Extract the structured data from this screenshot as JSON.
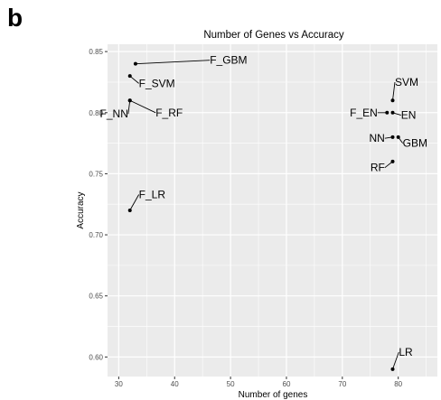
{
  "panel_label": "b",
  "chart_data": {
    "type": "scatter",
    "title": "Number of Genes vs Accuracy",
    "xlabel": "Number of genes",
    "ylabel": "Accuracy",
    "xlim": [
      28,
      87
    ],
    "ylim": [
      0.584,
      0.856
    ],
    "xticks": [
      30,
      40,
      50,
      60,
      70,
      80
    ],
    "yticks": [
      0.6,
      0.65,
      0.7,
      0.75,
      0.8,
      0.85
    ],
    "ytick_labels": [
      "0.60",
      "0.65",
      "0.70",
      "0.75",
      "0.80",
      "0.85"
    ],
    "grid": true,
    "background": "#ebebeb",
    "point_color": "#000000",
    "points": [
      {
        "label": "F_GBM",
        "x": 33,
        "y": 0.84,
        "lx": 46.3,
        "ly": 0.84,
        "anchor": "start"
      },
      {
        "label": "F_SVM",
        "x": 32,
        "y": 0.83,
        "lx": 33.6,
        "ly": 0.821,
        "anchor": "start"
      },
      {
        "label": "F_NN",
        "x": 32,
        "y": 0.81,
        "lx": 31.7,
        "ly": 0.796,
        "anchor": "end"
      },
      {
        "label": "F_RF",
        "x": 32,
        "y": 0.81,
        "lx": 36.6,
        "ly": 0.797,
        "anchor": "start"
      },
      {
        "label": "F_LR",
        "x": 32,
        "y": 0.72,
        "lx": 33.6,
        "ly": 0.73,
        "anchor": "start"
      },
      {
        "label": "SVM",
        "x": 79,
        "y": 0.81,
        "lx": 79.4,
        "ly": 0.822,
        "anchor": "start"
      },
      {
        "label": "F_EN",
        "x": 78,
        "y": 0.8,
        "lx": 76.3,
        "ly": 0.797,
        "anchor": "end"
      },
      {
        "label": "EN",
        "x": 79,
        "y": 0.8,
        "lx": 80.5,
        "ly": 0.795,
        "anchor": "start"
      },
      {
        "label": "NN",
        "x": 79,
        "y": 0.78,
        "lx": 77.6,
        "ly": 0.776,
        "anchor": "end"
      },
      {
        "label": "GBM",
        "x": 80,
        "y": 0.78,
        "lx": 80.8,
        "ly": 0.772,
        "anchor": "start"
      },
      {
        "label": "RF",
        "x": 79,
        "y": 0.76,
        "lx": 77.6,
        "ly": 0.752,
        "anchor": "end"
      },
      {
        "label": "LR",
        "x": 79,
        "y": 0.59,
        "lx": 80.1,
        "ly": 0.601,
        "anchor": "start"
      }
    ]
  }
}
